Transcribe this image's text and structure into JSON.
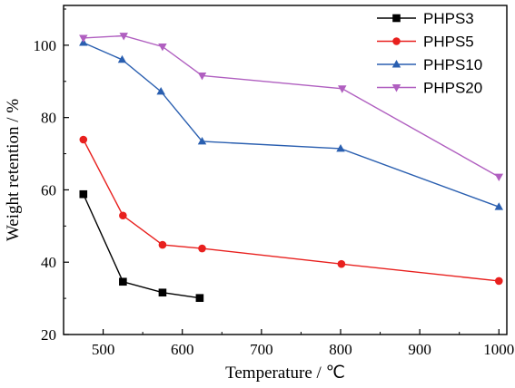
{
  "chart_data": {
    "type": "line",
    "xlabel": "Temperature / ℃",
    "ylabel": "Weight retention / %",
    "xlim": [
      450,
      1010
    ],
    "ylim": [
      20,
      111
    ],
    "xticks": [
      500,
      600,
      700,
      800,
      900,
      1000
    ],
    "yticks": [
      20,
      40,
      60,
      80,
      100
    ],
    "legend_position": "top-right",
    "grid": false,
    "series": [
      {
        "name": "PHPS3",
        "color": "#000000",
        "marker": "square",
        "x": [
          475,
          525,
          575,
          622
        ],
        "y": [
          58.8,
          34.6,
          31.6,
          30.1
        ]
      },
      {
        "name": "PHPS5",
        "color": "#e8201e",
        "marker": "circle",
        "x": [
          475,
          525,
          575,
          625,
          801,
          1000
        ],
        "y": [
          73.9,
          52.9,
          44.8,
          43.8,
          39.5,
          34.8
        ]
      },
      {
        "name": "PHPS10",
        "color": "#2a5fb0",
        "marker": "triangle-up",
        "x": [
          475,
          524,
          573,
          625,
          800,
          1000
        ],
        "y": [
          100.7,
          96.0,
          87.2,
          73.4,
          71.4,
          55.3
        ]
      },
      {
        "name": "PHPS20",
        "color": "#b05fc0",
        "marker": "triangle-down",
        "x": [
          475,
          526,
          575,
          625,
          802,
          1000
        ],
        "y": [
          102.0,
          102.6,
          99.6,
          91.6,
          88.0,
          63.6
        ]
      }
    ]
  }
}
